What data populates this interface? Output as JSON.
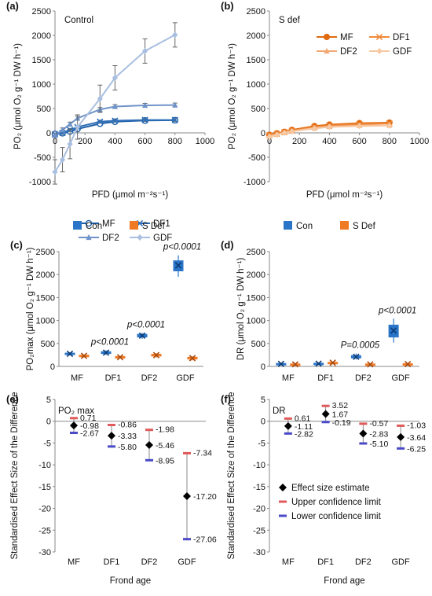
{
  "colors": {
    "mf": "#1f5fa8",
    "df1": "#2f6fb8",
    "df2": "#6f93c9",
    "gdf": "#a9bfe0",
    "con": "#2a75c8",
    "sdef": "#f07a24",
    "mf_s": "#e06a10",
    "df1_s": "#ef8a3c",
    "df2_s": "#f2a874",
    "gdf_s": "#f6c9a3",
    "effect": "#000000",
    "upper": "#e05a5a",
    "lower": "#4a4ac8",
    "err": "#666666"
  },
  "chart_data": [
    {
      "panel": "(a)",
      "type": "line",
      "title": "Control",
      "xlabel": "PFD (μmol m⁻²s⁻¹)",
      "ylabel": "PO₂ (μmol O₂ g⁻¹ DW h⁻¹)",
      "xlim": [
        0,
        1000
      ],
      "ylim": [
        -1000,
        2500
      ],
      "xticks": [
        "0",
        "200",
        "400",
        "600",
        "800",
        "1000"
      ],
      "yticks": [
        "-1000",
        "-500",
        "0",
        "500",
        "1000",
        "1500",
        "2000",
        "2500"
      ],
      "x": [
        0,
        50,
        100,
        150,
        300,
        400,
        600,
        800
      ],
      "series": [
        {
          "name": "MF",
          "marker": "circle-open",
          "color_key": "mf",
          "values": [
            -20,
            -5,
            30,
            80,
            190,
            230,
            255,
            260
          ],
          "err": [
            30,
            30,
            30,
            30,
            30,
            30,
            30,
            30
          ]
        },
        {
          "name": "DF1",
          "marker": "x",
          "color_key": "df1",
          "values": [
            -30,
            0,
            60,
            120,
            230,
            250,
            265,
            265
          ],
          "err": [
            30,
            30,
            30,
            30,
            30,
            30,
            30,
            30
          ]
        },
        {
          "name": "DF2",
          "marker": "triangle",
          "color_key": "df2",
          "values": [
            -50,
            60,
            180,
            300,
            480,
            540,
            565,
            570
          ],
          "err": [
            40,
            40,
            40,
            40,
            40,
            40,
            40,
            40
          ]
        },
        {
          "name": "GDF",
          "marker": "diamond",
          "color_key": "gdf",
          "values": [
            -800,
            -550,
            -230,
            120,
            700,
            1130,
            1680,
            2010
          ],
          "err": [
            250,
            250,
            300,
            250,
            280,
            250,
            250,
            250
          ]
        }
      ],
      "legend_position": "bottom-right"
    },
    {
      "panel": "(b)",
      "type": "line",
      "title": "S def",
      "xlabel": "PFD (μmol m⁻²s⁻¹)",
      "ylabel": "PO₂ (μmol O₂ g⁻¹ DW h⁻¹)",
      "xlim": [
        0,
        1000
      ],
      "ylim": [
        -1000,
        2500
      ],
      "xticks": [
        "0",
        "200",
        "400",
        "600",
        "800",
        "1000"
      ],
      "yticks": [
        "-1000",
        "-500",
        "0",
        "500",
        "1000",
        "1500",
        "2000",
        "2500"
      ],
      "x": [
        0,
        50,
        100,
        150,
        300,
        400,
        600,
        800
      ],
      "series": [
        {
          "name": "MF",
          "marker": "circle",
          "color_key": "mf_s",
          "values": [
            -40,
            -10,
            20,
            60,
            140,
            170,
            200,
            210
          ]
        },
        {
          "name": "DF1",
          "marker": "x",
          "color_key": "df1_s",
          "values": [
            -50,
            -20,
            15,
            45,
            120,
            150,
            180,
            195
          ]
        },
        {
          "name": "DF2",
          "marker": "triangle",
          "color_key": "df2_s",
          "values": [
            -60,
            -30,
            5,
            35,
            100,
            130,
            150,
            155
          ]
        },
        {
          "name": "GDF",
          "marker": "diamond",
          "color_key": "gdf_s",
          "values": [
            -80,
            -40,
            0,
            30,
            90,
            120,
            140,
            150
          ]
        }
      ],
      "legend_position": "top-right"
    },
    {
      "panel": "(c)",
      "type": "box",
      "ylabel": "PO₂max (μmol O₂ g⁻¹ DW h⁻¹)",
      "ylim": [
        0,
        2500
      ],
      "yticks": [
        "0",
        "500",
        "1000",
        "1500",
        "2000",
        "2500"
      ],
      "categories": [
        "MF",
        "DF1",
        "DF2",
        "GDF"
      ],
      "legend": [
        "Con",
        "S Def"
      ],
      "series": [
        {
          "name": "Con",
          "color_key": "con",
          "boxes": [
            [
              240,
              260,
              275,
              290,
              310
            ],
            [
              250,
              280,
              300,
              320,
              350
            ],
            [
              600,
              640,
              670,
              700,
              730
            ],
            [
              1950,
              2080,
              2200,
              2300,
              2420
            ]
          ]
        },
        {
          "name": "S Def",
          "color_key": "sdef",
          "boxes": [
            [
              190,
              210,
              230,
              245,
              260
            ],
            [
              170,
              190,
              200,
              215,
              230
            ],
            [
              190,
              225,
              245,
              265,
              290
            ],
            [
              130,
              160,
              180,
              200,
              220
            ]
          ]
        }
      ],
      "annotations": [
        {
          "text": "p<0.0001",
          "category": "DF1"
        },
        {
          "text": "p<0.0001",
          "category": "DF2"
        },
        {
          "text": "p<0.0001",
          "category": "GDF"
        }
      ]
    },
    {
      "panel": "(d)",
      "type": "box",
      "ylabel": "DR (μmol O₂ g⁻¹ DW h⁻¹)",
      "ylim": [
        0,
        2500
      ],
      "yticks": [
        "0",
        "500",
        "1000",
        "1500",
        "2000",
        "2500"
      ],
      "categories": [
        "MF",
        "DF1",
        "DF2",
        "GDF"
      ],
      "legend": [
        "Con",
        "S Def"
      ],
      "series": [
        {
          "name": "Con",
          "color_key": "con",
          "boxes": [
            [
              30,
              45,
              55,
              65,
              80
            ],
            [
              30,
              45,
              60,
              70,
              90
            ],
            [
              150,
              185,
              210,
              235,
              280
            ],
            [
              520,
              640,
              780,
              900,
              1040
            ]
          ]
        },
        {
          "name": "S Def",
          "color_key": "sdef",
          "boxes": [
            [
              25,
              35,
              45,
              55,
              65
            ],
            [
              50,
              65,
              80,
              90,
              105
            ],
            [
              20,
              35,
              45,
              55,
              70
            ],
            [
              20,
              35,
              50,
              60,
              75
            ]
          ]
        }
      ],
      "annotations": [
        {
          "text": "P=0.0005",
          "category": "DF2"
        },
        {
          "text": "p<0.0001",
          "category": "GDF"
        }
      ]
    },
    {
      "panel": "(e)",
      "type": "scatter",
      "title": "PO₂ max",
      "xlabel": "Frond age",
      "ylabel": "Standardised Effect Size of the Difference",
      "ylim": [
        -30,
        5
      ],
      "yticks": [
        "-30",
        "-25",
        "-20",
        "-15",
        "-10",
        "-5",
        "0",
        "5"
      ],
      "categories": [
        "MF",
        "DF1",
        "DF2",
        "GDF"
      ],
      "estimate": [
        -0.98,
        -3.33,
        -5.46,
        -17.2
      ],
      "upper": [
        0.71,
        -0.86,
        -1.98,
        -7.34
      ],
      "lower": [
        -2.67,
        -5.8,
        -8.95,
        -27.06
      ],
      "labels": {
        "estimate": [
          "-0.98",
          "-3.33",
          "-5.46",
          "-17.20"
        ],
        "upper": [
          "0.71",
          "-0.86",
          "-1.98",
          "-7.34"
        ],
        "lower": [
          "-2.67",
          "-5.80",
          "-8.95",
          "-27.06"
        ]
      }
    },
    {
      "panel": "(f)",
      "type": "scatter",
      "title": "DR",
      "xlabel": "Frond age",
      "ylabel": "Standardised Effect Size of the Difference",
      "ylim": [
        -30,
        5
      ],
      "yticks": [
        "-30",
        "-25",
        "-20",
        "-15",
        "-10",
        "-5",
        "0",
        "5"
      ],
      "categories": [
        "MF",
        "DF1",
        "DF2",
        "GDF"
      ],
      "estimate": [
        -1.11,
        1.67,
        -2.83,
        -3.64
      ],
      "upper": [
        0.61,
        3.52,
        -0.57,
        -1.03
      ],
      "lower": [
        -2.82,
        -0.19,
        -5.1,
        -6.25
      ],
      "labels": {
        "estimate": [
          "-1.11",
          "1.67",
          "-2.83",
          "-3.64"
        ],
        "upper": [
          "0.61",
          "3.52",
          "-0.57",
          "-1.03"
        ],
        "lower": [
          "-2.82",
          "-0.19",
          "-5.10",
          "-6.25"
        ]
      },
      "legend": [
        "Effect size estimate",
        "Upper confidence limit",
        "Lower confidence limit"
      ],
      "legend_position": "bottom-right"
    }
  ]
}
